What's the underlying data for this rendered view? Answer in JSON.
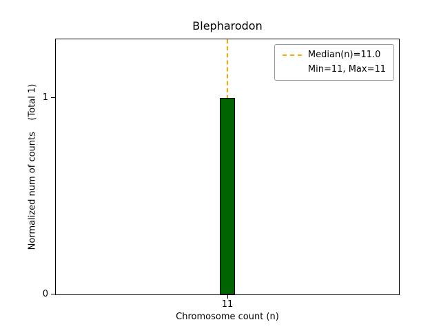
{
  "title": "Blepharodon",
  "axes": {
    "xlabel": "Chromosome count (n)",
    "ylabel": "Normalized num of counts    (Total 1)",
    "xticks": [
      "11"
    ],
    "yticks": [
      "0",
      "1"
    ]
  },
  "legend": {
    "items": [
      {
        "label": "Median(n)=11.0",
        "marker": "dashed-line",
        "color": "#ffa500"
      },
      {
        "label": "Min=11, Max=11",
        "marker": "none"
      }
    ]
  },
  "chart_data": {
    "type": "bar",
    "title": "Blepharodon",
    "xlabel": "Chromosome count (n)",
    "ylabel": "Normalized num of counts (Total 1)",
    "categories": [
      11
    ],
    "values": [
      1
    ],
    "total_counts": 1,
    "ylim": [
      0,
      1.3
    ],
    "xtick_labels": [
      "11"
    ],
    "ytick_labels": [
      "0",
      "1"
    ],
    "bar_color": "#006400",
    "bar_edge_color": "#000000",
    "median": 11.0,
    "min": 11,
    "max": 11,
    "median_line_color": "#ffa500",
    "median_line_style": "dashed",
    "legend_position": "upper right",
    "grid": false
  }
}
